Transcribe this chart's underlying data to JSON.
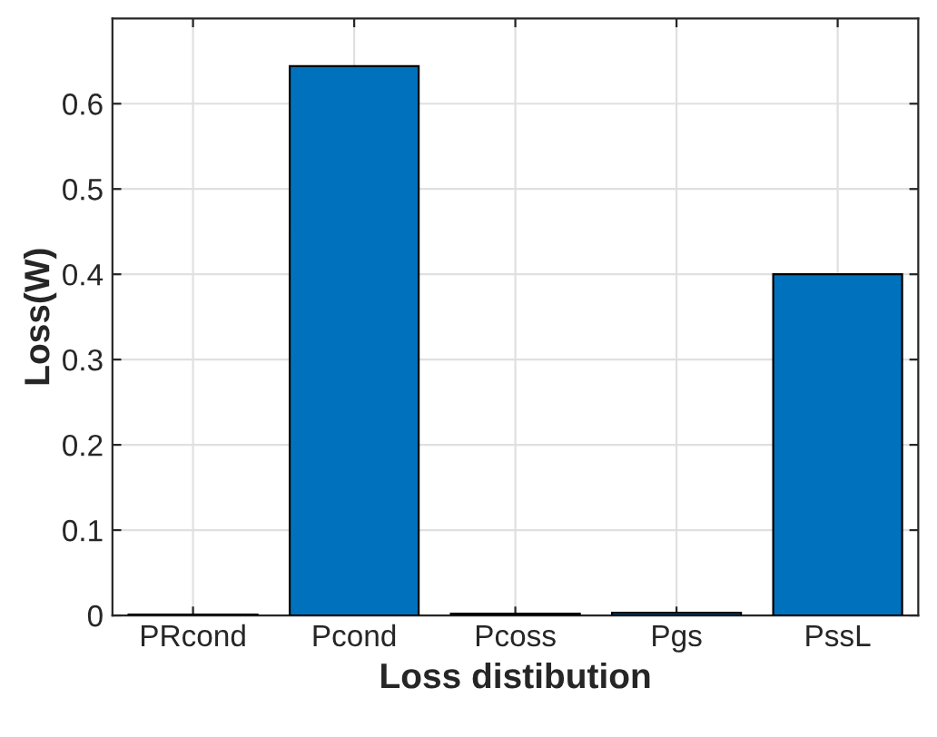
{
  "chart_data": {
    "type": "bar",
    "xlabel": "Loss distibution",
    "ylabel": "Loss(W)",
    "categories": [
      "PRcond",
      "Pcond",
      "Pcoss",
      "Pgs",
      "PssL"
    ],
    "values": [
      0.001,
      0.644,
      0.002,
      0.003,
      0.4
    ],
    "color": "#0072bd",
    "ylim": [
      0,
      0.7
    ],
    "yticks": [
      0,
      0.1,
      0.2,
      0.3,
      0.4,
      0.5,
      0.6
    ],
    "grid": true
  }
}
